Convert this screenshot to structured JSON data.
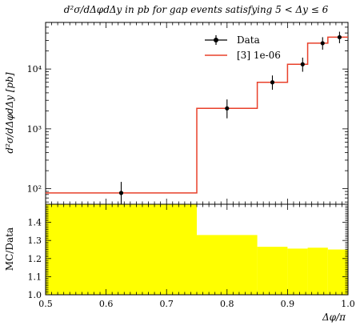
{
  "chart_data": [
    {
      "type": "line",
      "title": "d²σ/dΔφdΔy in pb for gap events satisfying 5 < Δy ≤ 6",
      "ylabel": "d²σ/dΔφdΔy [pb]",
      "xlabel": "",
      "yscale": "log",
      "xlim": [
        0.5,
        1.0
      ],
      "ylim": [
        55,
        60000
      ],
      "y_ticks": [
        100,
        1000,
        10000
      ],
      "y_tick_labels": [
        "10²",
        "10³",
        "10⁴"
      ],
      "legend_position": "top-center",
      "series": [
        {
          "name": "Data",
          "style": "points-with-errorbars",
          "color": "#000000",
          "x": [
            0.625,
            0.8,
            0.875,
            0.925,
            0.958,
            0.986
          ],
          "y": [
            85,
            2200,
            6000,
            12000,
            27000,
            34000
          ],
          "y_err_low": [
            45,
            700,
            1500,
            3000,
            6000,
            7000
          ],
          "y_err_high": [
            45,
            900,
            1800,
            3500,
            7000,
            8000
          ]
        },
        {
          "name": "[3] 1e-06",
          "style": "step",
          "color": "#e8402a",
          "bin_edges": [
            0.5,
            0.75,
            0.85,
            0.9,
            0.9333,
            0.9667,
            1.0
          ],
          "values": [
            85,
            2200,
            6000,
            12000,
            27000,
            34000
          ]
        }
      ]
    },
    {
      "type": "area",
      "title": "",
      "ylabel": "MC/Data",
      "xlabel": "Δφ/π",
      "xlim": [
        0.5,
        1.0
      ],
      "ylim": [
        1.0,
        1.5
      ],
      "x_ticks": [
        0.5,
        0.6,
        0.7,
        0.8,
        0.9,
        1.0
      ],
      "x_tick_labels": [
        "0.5",
        "0.6",
        "0.7",
        "0.8",
        "0.9",
        "1.0"
      ],
      "y_ticks": [
        1.0,
        1.1,
        1.2,
        1.3,
        1.4
      ],
      "y_tick_labels": [
        "1.0",
        "1.1",
        "1.2",
        "1.3",
        "1.4"
      ],
      "fill_color": "#ffff00",
      "bin_edges": [
        0.5,
        0.75,
        0.85,
        0.9,
        0.9333,
        0.9667,
        1.0
      ],
      "values": [
        1.5,
        1.33,
        1.265,
        1.255,
        1.26,
        1.25
      ]
    }
  ]
}
